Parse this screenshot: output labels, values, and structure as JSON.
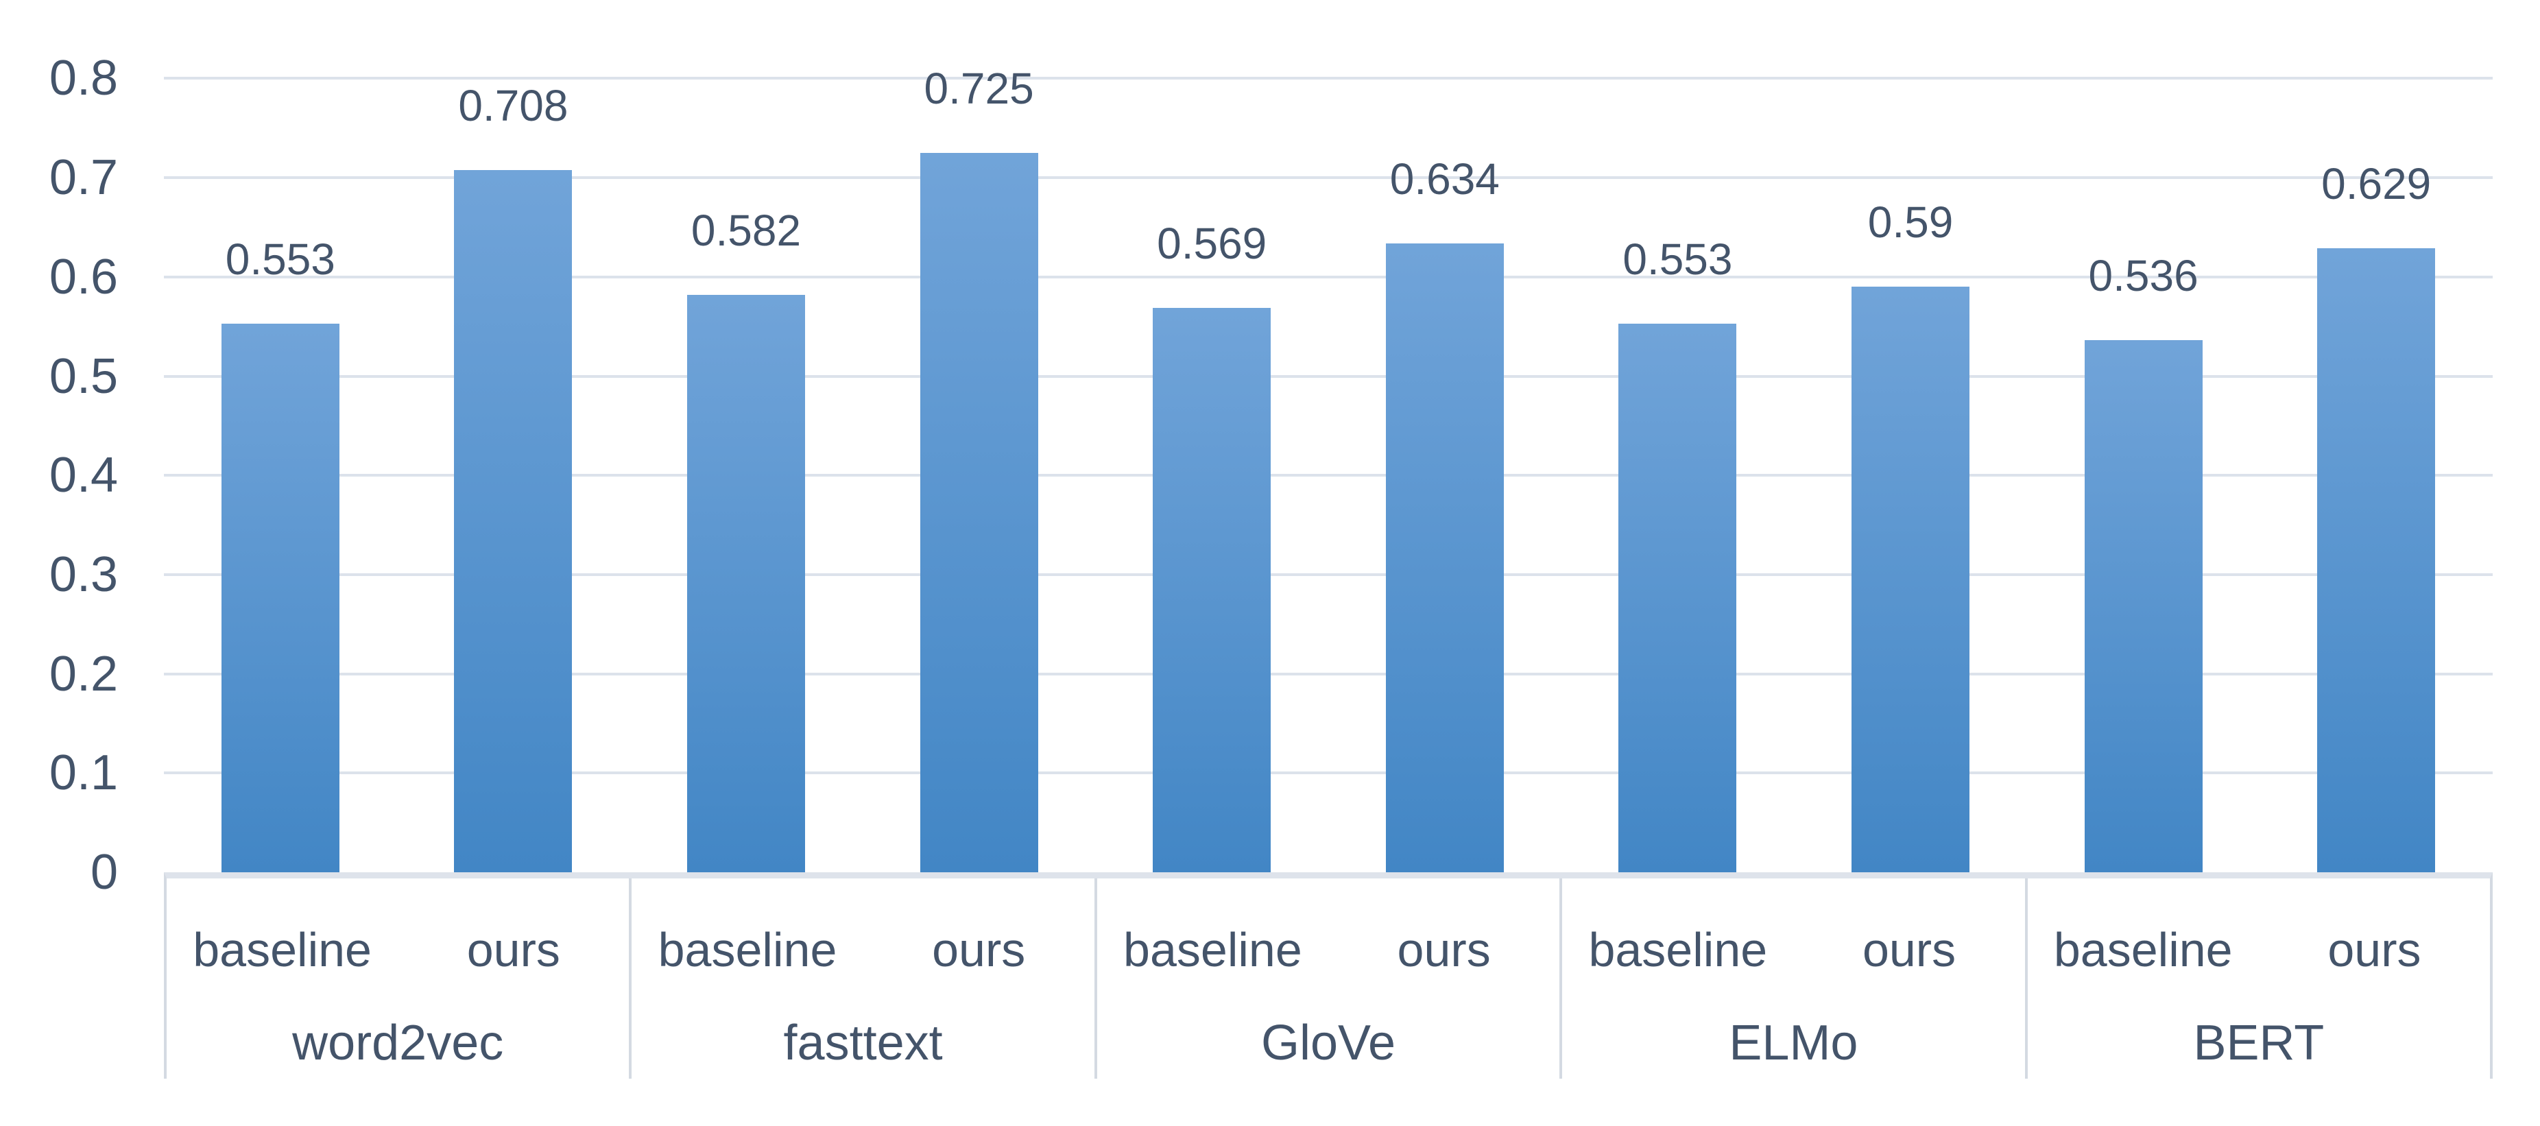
{
  "chart_data": {
    "type": "bar",
    "title": "",
    "series_labels": [
      "baseline",
      "ours"
    ],
    "categories": [
      "word2vec",
      "fasttext",
      "GloVe",
      "ELMo",
      "BERT"
    ],
    "groups": [
      {
        "label": "word2vec",
        "series": [
          {
            "name": "baseline",
            "value": 0.553,
            "value_label": "0.553"
          },
          {
            "name": "ours",
            "value": 0.708,
            "value_label": "0.708"
          }
        ]
      },
      {
        "label": "fasttext",
        "series": [
          {
            "name": "baseline",
            "value": 0.582,
            "value_label": "0.582"
          },
          {
            "name": "ours",
            "value": 0.725,
            "value_label": "0.725"
          }
        ]
      },
      {
        "label": "GloVe",
        "series": [
          {
            "name": "baseline",
            "value": 0.569,
            "value_label": "0.569"
          },
          {
            "name": "ours",
            "value": 0.634,
            "value_label": "0.634"
          }
        ]
      },
      {
        "label": "ELMo",
        "series": [
          {
            "name": "baseline",
            "value": 0.553,
            "value_label": "0.553"
          },
          {
            "name": "ours",
            "value": 0.59,
            "value_label": "0.59"
          }
        ]
      },
      {
        "label": "BERT",
        "series": [
          {
            "name": "baseline",
            "value": 0.536,
            "value_label": "0.536"
          },
          {
            "name": "ours",
            "value": 0.629,
            "value_label": "0.629"
          }
        ]
      }
    ],
    "xlabel": "",
    "ylabel": "",
    "ylim": [
      0,
      0.8
    ],
    "y_ticks": [
      "0",
      "0.1",
      "0.2",
      "0.3",
      "0.4",
      "0.5",
      "0.6",
      "0.7",
      "0.8"
    ],
    "grid": true,
    "legend_position": "none",
    "data_labels_position": "outside-end",
    "colors": {
      "bar_gradient_top": "#71A4D9",
      "bar_gradient_bottom": "#4286C5",
      "gridline": "#DCE2EB",
      "axis_band": "#DEE3EB",
      "table_border": "#D4DAE2",
      "text": "#44546A",
      "background": "#FFFFFF"
    }
  }
}
